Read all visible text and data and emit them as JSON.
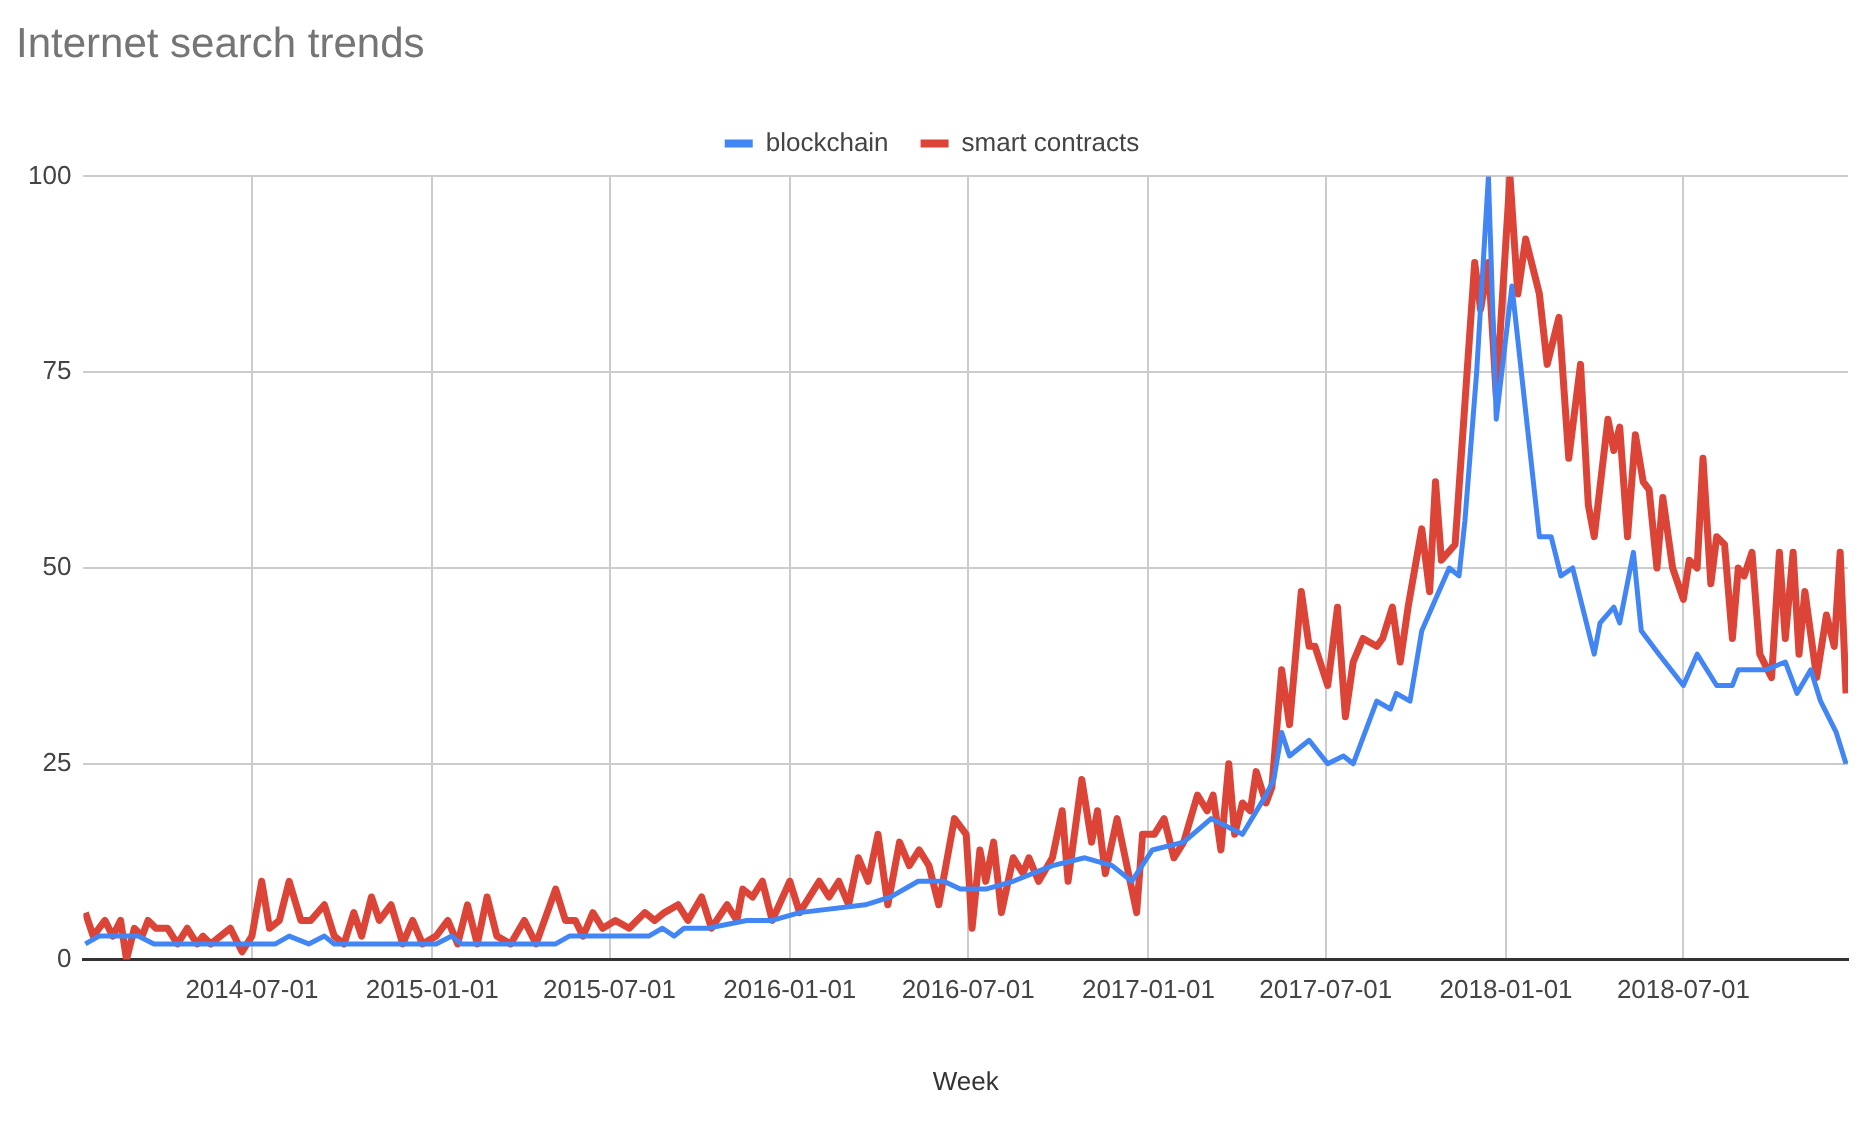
{
  "chart_data": {
    "type": "line",
    "title": "Internet search trends",
    "xlabel": "Week",
    "xlim": [
      "2014-01-10",
      "2018-12-16"
    ],
    "xticks": [
      "2014-07-01",
      "2015-01-01",
      "2015-07-01",
      "2016-01-01",
      "2016-07-01",
      "2017-01-01",
      "2017-07-01",
      "2018-01-01",
      "2018-07-01"
    ],
    "ylim": [
      0,
      100
    ],
    "yticks": [
      0,
      25,
      50,
      75,
      100
    ],
    "grid": true,
    "legend": "top",
    "marker": "none",
    "line_style": "solid",
    "series": [
      {
        "name": "blockchain",
        "color": "#4285f4",
        "x": [
          "2014-01-12",
          "2014-01-26",
          "2014-03-07",
          "2014-03-23",
          "2014-07-25",
          "2014-08-08",
          "2014-08-28",
          "2014-09-13",
          "2014-09-23",
          "2015-01-05",
          "2015-01-21",
          "2015-01-31",
          "2015-05-07",
          "2015-05-21",
          "2015-08-10",
          "2015-08-24",
          "2015-09-05",
          "2015-09-15",
          "2015-10-09",
          "2015-11-18",
          "2015-12-14",
          "2016-01-11",
          "2016-03-18",
          "2016-04-13",
          "2016-05-11",
          "2016-06-06",
          "2016-06-23",
          "2016-07-19",
          "2016-08-16",
          "2016-09-25",
          "2016-10-28",
          "2016-11-25",
          "2016-12-15",
          "2017-01-05",
          "2017-02-06",
          "2017-03-06",
          "2017-04-07",
          "2017-05-01",
          "2017-05-09",
          "2017-05-17",
          "2017-05-25",
          "2017-06-14",
          "2017-07-03",
          "2017-07-19",
          "2017-07-29",
          "2017-08-22",
          "2017-09-05",
          "2017-09-11",
          "2017-09-25",
          "2017-10-07",
          "2017-10-21",
          "2017-11-04",
          "2017-11-14",
          "2017-11-20",
          "2017-12-02",
          "2017-12-14",
          "2017-12-22",
          "2018-01-07",
          "2018-01-21",
          "2018-02-04",
          "2018-02-16",
          "2018-02-26",
          "2018-03-10",
          "2018-04-01",
          "2018-04-07",
          "2018-04-21",
          "2018-04-27",
          "2018-05-11",
          "2018-05-19",
          "2018-06-06",
          "2018-07-01",
          "2018-07-15",
          "2018-08-04",
          "2018-08-20",
          "2018-08-26",
          "2018-09-23",
          "2018-10-13",
          "2018-10-25",
          "2018-11-08",
          "2018-11-18",
          "2018-12-04",
          "2018-12-14"
        ],
        "values": [
          2,
          3,
          3,
          2,
          2,
          3,
          2,
          3,
          2,
          2,
          3,
          2,
          2,
          3,
          3,
          4,
          3,
          4,
          4,
          5,
          5,
          6,
          7,
          8,
          10,
          10,
          9,
          9,
          10,
          12,
          13,
          12,
          10,
          14,
          15,
          18,
          16,
          21,
          23,
          29,
          26,
          28,
          25,
          26,
          25,
          33,
          32,
          34,
          33,
          42,
          46,
          50,
          49,
          56,
          75,
          100,
          69,
          86,
          70,
          54,
          54,
          49,
          50,
          39,
          43,
          45,
          43,
          52,
          42,
          39,
          35,
          39,
          35,
          35,
          37,
          37,
          38,
          34,
          37,
          33,
          29,
          25
        ]
      },
      {
        "name": "smart contracts",
        "color": "#db4437",
        "x": [
          "2014-01-12",
          "2014-01-20",
          "2014-02-01",
          "2014-02-09",
          "2014-02-17",
          "2014-02-23",
          "2014-03-03",
          "2014-03-11",
          "2014-03-17",
          "2014-03-25",
          "2014-04-06",
          "2014-04-16",
          "2014-04-26",
          "2014-05-06",
          "2014-05-12",
          "2014-05-20",
          "2014-05-30",
          "2014-06-09",
          "2014-06-21",
          "2014-07-01",
          "2014-07-11",
          "2014-07-19",
          "2014-07-29",
          "2014-08-08",
          "2014-08-20",
          "2014-08-30",
          "2014-09-13",
          "2014-09-23",
          "2014-10-03",
          "2014-10-13",
          "2014-10-21",
          "2014-10-31",
          "2014-11-08",
          "2014-11-20",
          "2014-12-02",
          "2014-12-12",
          "2014-12-22",
          "2015-01-05",
          "2015-01-17",
          "2015-01-27",
          "2015-02-06",
          "2015-02-16",
          "2015-02-26",
          "2015-03-08",
          "2015-03-22",
          "2015-04-05",
          "2015-04-17",
          "2015-05-07",
          "2015-05-17",
          "2015-05-27",
          "2015-06-04",
          "2015-06-14",
          "2015-06-24",
          "2015-07-07",
          "2015-07-21",
          "2015-08-06",
          "2015-08-16",
          "2015-08-26",
          "2015-09-09",
          "2015-09-19",
          "2015-10-03",
          "2015-10-13",
          "2015-10-29",
          "2015-11-08",
          "2015-11-14",
          "2015-11-24",
          "2015-12-04",
          "2015-12-14",
          "2016-01-01",
          "2016-01-11",
          "2016-01-31",
          "2016-02-10",
          "2016-02-20",
          "2016-03-01",
          "2016-03-11",
          "2016-03-21",
          "2016-03-31",
          "2016-04-10",
          "2016-04-22",
          "2016-05-02",
          "2016-05-12",
          "2016-05-22",
          "2016-06-01",
          "2016-06-17",
          "2016-06-29",
          "2016-07-05",
          "2016-07-13",
          "2016-07-19",
          "2016-07-27",
          "2016-08-04",
          "2016-08-16",
          "2016-08-26",
          "2016-09-01",
          "2016-09-11",
          "2016-09-25",
          "2016-10-05",
          "2016-10-11",
          "2016-10-25",
          "2016-11-04",
          "2016-11-10",
          "2016-11-18",
          "2016-11-30",
          "2016-12-10",
          "2016-12-20",
          "2016-12-26",
          "2017-01-07",
          "2017-01-17",
          "2017-01-27",
          "2017-02-06",
          "2017-02-20",
          "2017-03-02",
          "2017-03-08",
          "2017-03-16",
          "2017-03-24",
          "2017-03-30",
          "2017-04-07",
          "2017-04-15",
          "2017-04-21",
          "2017-05-01",
          "2017-05-07",
          "2017-05-17",
          "2017-05-25",
          "2017-06-06",
          "2017-06-14",
          "2017-06-20",
          "2017-07-03",
          "2017-07-13",
          "2017-07-21",
          "2017-07-29",
          "2017-08-08",
          "2017-08-22",
          "2017-08-28",
          "2017-09-07",
          "2017-09-15",
          "2017-09-23",
          "2017-10-07",
          "2017-10-15",
          "2017-10-21",
          "2017-10-27",
          "2017-11-10",
          "2017-11-30",
          "2017-12-06",
          "2017-12-14",
          "2017-12-22",
          "2018-01-05",
          "2018-01-13",
          "2018-01-21",
          "2018-02-04",
          "2018-02-12",
          "2018-02-24",
          "2018-03-06",
          "2018-03-18",
          "2018-03-26",
          "2018-04-01",
          "2018-04-15",
          "2018-04-21",
          "2018-04-27",
          "2018-05-05",
          "2018-05-13",
          "2018-05-21",
          "2018-05-27",
          "2018-06-04",
          "2018-06-10",
          "2018-06-20",
          "2018-07-01",
          "2018-07-07",
          "2018-07-15",
          "2018-07-21",
          "2018-07-29",
          "2018-08-04",
          "2018-08-12",
          "2018-08-20",
          "2018-08-26",
          "2018-09-01",
          "2018-09-09",
          "2018-09-17",
          "2018-09-29",
          "2018-10-07",
          "2018-10-13",
          "2018-10-21",
          "2018-10-27",
          "2018-11-02",
          "2018-11-14",
          "2018-11-24",
          "2018-12-02",
          "2018-12-08",
          "2018-12-14"
        ],
        "values": [
          6,
          3,
          5,
          3,
          5,
          0,
          4,
          3,
          5,
          4,
          4,
          2,
          4,
          2,
          3,
          2,
          3,
          4,
          1,
          3,
          10,
          4,
          5,
          10,
          5,
          5,
          7,
          3,
          2,
          6,
          3,
          8,
          5,
          7,
          2,
          5,
          2,
          3,
          5,
          2,
          7,
          2,
          8,
          3,
          2,
          5,
          2,
          9,
          5,
          5,
          3,
          6,
          4,
          5,
          4,
          6,
          5,
          6,
          7,
          5,
          8,
          4,
          7,
          5,
          9,
          8,
          10,
          5,
          10,
          6,
          10,
          8,
          10,
          7,
          13,
          10,
          16,
          7,
          15,
          12,
          14,
          12,
          7,
          18,
          16,
          4,
          14,
          10,
          15,
          6,
          13,
          11,
          13,
          10,
          13,
          19,
          10,
          23,
          15,
          19,
          11,
          18,
          12,
          6,
          16,
          16,
          18,
          13,
          15,
          21,
          19,
          21,
          14,
          25,
          16,
          20,
          19,
          24,
          20,
          22,
          37,
          30,
          47,
          40,
          40,
          35,
          45,
          31,
          38,
          41,
          40,
          41,
          45,
          38,
          45,
          55,
          47,
          61,
          51,
          53,
          89,
          83,
          89,
          72,
          100,
          85,
          92,
          85,
          76,
          82,
          64,
          76,
          58,
          54,
          69,
          65,
          68,
          54,
          67,
          61,
          60,
          50,
          59,
          50,
          46,
          51,
          50,
          64,
          48,
          54,
          53,
          41,
          50,
          49,
          52,
          39,
          36,
          52,
          41,
          52,
          39,
          47,
          36,
          44,
          40,
          52,
          34
        ]
      }
    ]
  }
}
